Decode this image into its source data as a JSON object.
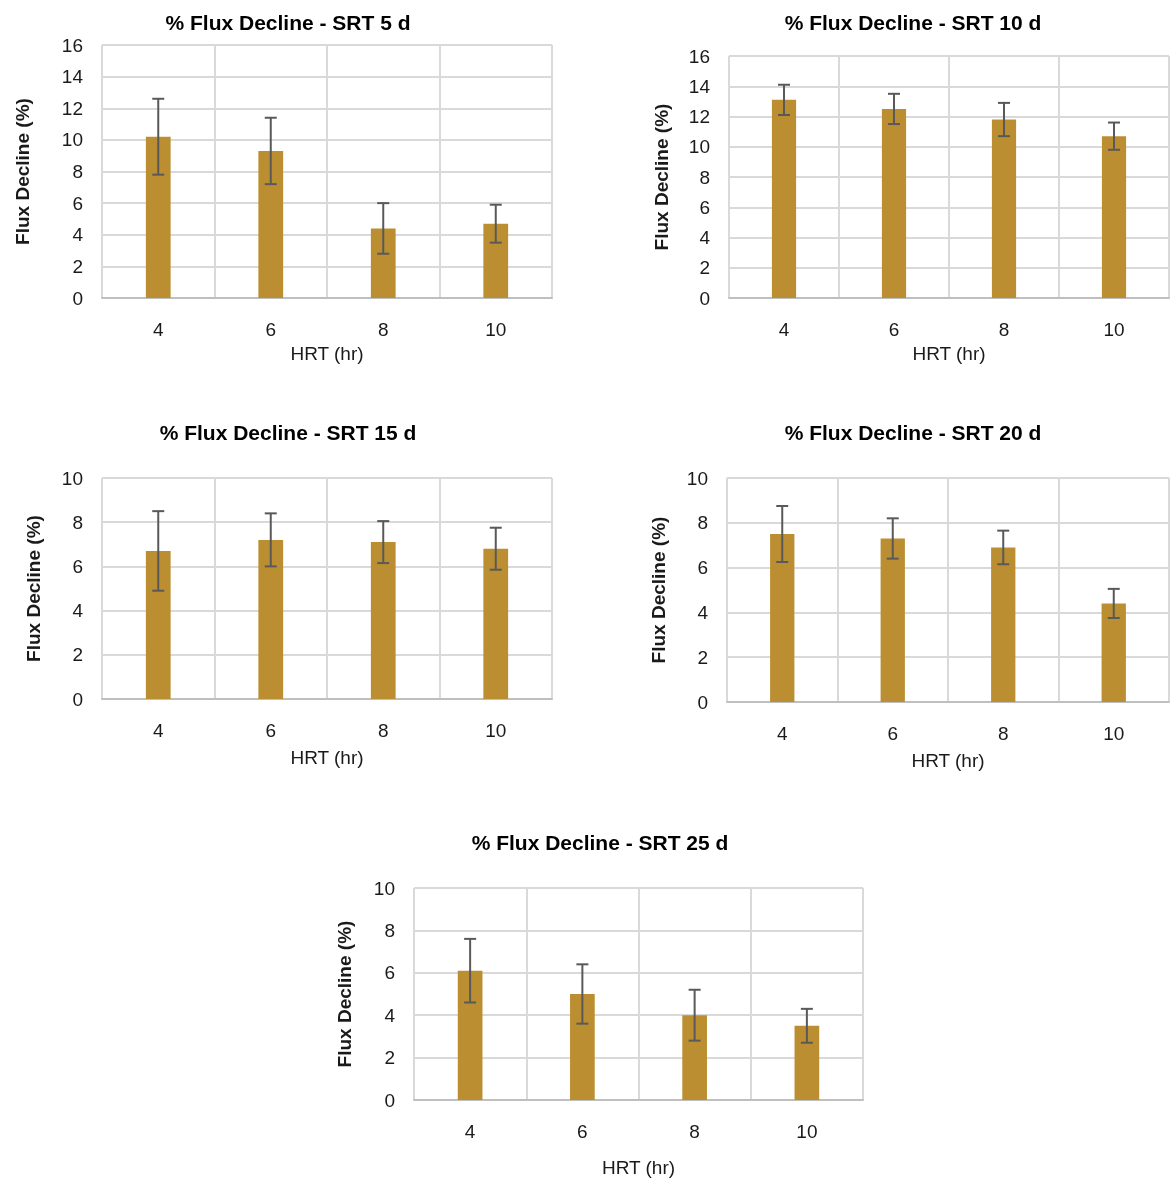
{
  "chart_data": [
    {
      "type": "bar",
      "title": "% Flux Decline - SRT 5 d",
      "xlabel": "HRT (hr)",
      "ylabel": "Flux Decline (%)",
      "categories": [
        "4",
        "6",
        "8",
        "10"
      ],
      "values": [
        10.2,
        9.3,
        4.4,
        4.7
      ],
      "errors": [
        2.4,
        2.1,
        1.6,
        1.2
      ],
      "color": "#bb8f31",
      "ylim": [
        0,
        16
      ],
      "yticks": [
        0,
        2,
        4,
        6,
        8,
        10,
        12,
        14,
        16
      ],
      "grid": true
    },
    {
      "type": "bar",
      "title": "% Flux Decline - SRT 10 d",
      "xlabel": "HRT (hr)",
      "ylabel": "Flux Decline (%)",
      "categories": [
        "4",
        "6",
        "8",
        "10"
      ],
      "values": [
        13.1,
        12.5,
        11.8,
        10.7
      ],
      "errors": [
        1.0,
        1.0,
        1.1,
        0.9
      ],
      "color": "#bb8f31",
      "ylim": [
        0,
        16
      ],
      "yticks": [
        0,
        2,
        4,
        6,
        8,
        10,
        12,
        14,
        16
      ],
      "grid": true
    },
    {
      "type": "bar",
      "title": "% Flux Decline - SRT 15 d",
      "xlabel": "HRT (hr)",
      "ylabel": "Flux Decline (%)",
      "categories": [
        "4",
        "6",
        "8",
        "10"
      ],
      "values": [
        6.7,
        7.2,
        7.1,
        6.8
      ],
      "errors": [
        1.8,
        1.2,
        0.95,
        0.95
      ],
      "color": "#bb8f31",
      "ylim": [
        0,
        10
      ],
      "yticks": [
        0,
        2,
        4,
        6,
        8,
        10
      ],
      "grid": true
    },
    {
      "type": "bar",
      "title": "% Flux Decline - SRT 20 d",
      "xlabel": "HRT (hr)",
      "ylabel": "Flux Decline (%)",
      "categories": [
        "4",
        "6",
        "8",
        "10"
      ],
      "values": [
        7.5,
        7.3,
        6.9,
        4.4
      ],
      "errors": [
        1.25,
        0.9,
        0.75,
        0.65
      ],
      "color": "#bb8f31",
      "ylim": [
        0,
        10
      ],
      "yticks": [
        0,
        2,
        4,
        6,
        8,
        10
      ],
      "grid": true
    },
    {
      "type": "bar",
      "title": "% Flux Decline - SRT 25 d",
      "xlabel": "HRT (hr)",
      "ylabel": "Flux Decline (%)",
      "categories": [
        "4",
        "6",
        "8",
        "10"
      ],
      "values": [
        6.1,
        5.0,
        4.0,
        3.5
      ],
      "errors": [
        1.5,
        1.4,
        1.2,
        0.8
      ],
      "color": "#bb8f31",
      "ylim": [
        0,
        10
      ],
      "yticks": [
        0,
        2,
        4,
        6,
        8,
        10
      ],
      "grid": true
    }
  ]
}
